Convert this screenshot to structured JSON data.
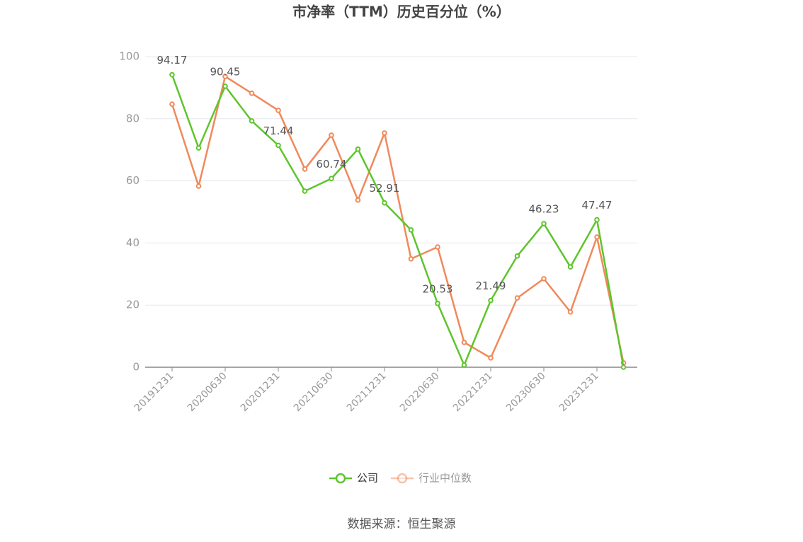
{
  "chart_data": {
    "type": "line",
    "title": "市净率（TTM）历史百分位（%）",
    "source": "数据来源：恒生聚源",
    "categories": [
      "20191231",
      null,
      "20200630",
      null,
      "20201231",
      null,
      "20210630",
      null,
      "20211231",
      null,
      "20220630",
      null,
      "20221231",
      null,
      "20230630",
      null,
      "20231231",
      null
    ],
    "series": [
      {
        "name": "公司",
        "color": "#5ec52c",
        "values": [
          94.17,
          70.6,
          90.45,
          79.3,
          71.44,
          56.7,
          60.74,
          70.2,
          52.91,
          44.2,
          20.53,
          0.7,
          21.49,
          35.8,
          46.23,
          32.3,
          47.47,
          0
        ]
      },
      {
        "name": "行业中位数",
        "color": "#f0895a",
        "values": [
          84.7,
          58.3,
          93.6,
          88.2,
          82.7,
          63.8,
          74.7,
          53.8,
          75.4,
          34.9,
          38.7,
          8.0,
          3.0,
          22.3,
          28.5,
          17.8,
          41.9,
          1.4
        ]
      }
    ],
    "ylim": [
      0,
      100
    ],
    "yticks": [
      0,
      20,
      40,
      60,
      80,
      100
    ],
    "grid": true
  }
}
